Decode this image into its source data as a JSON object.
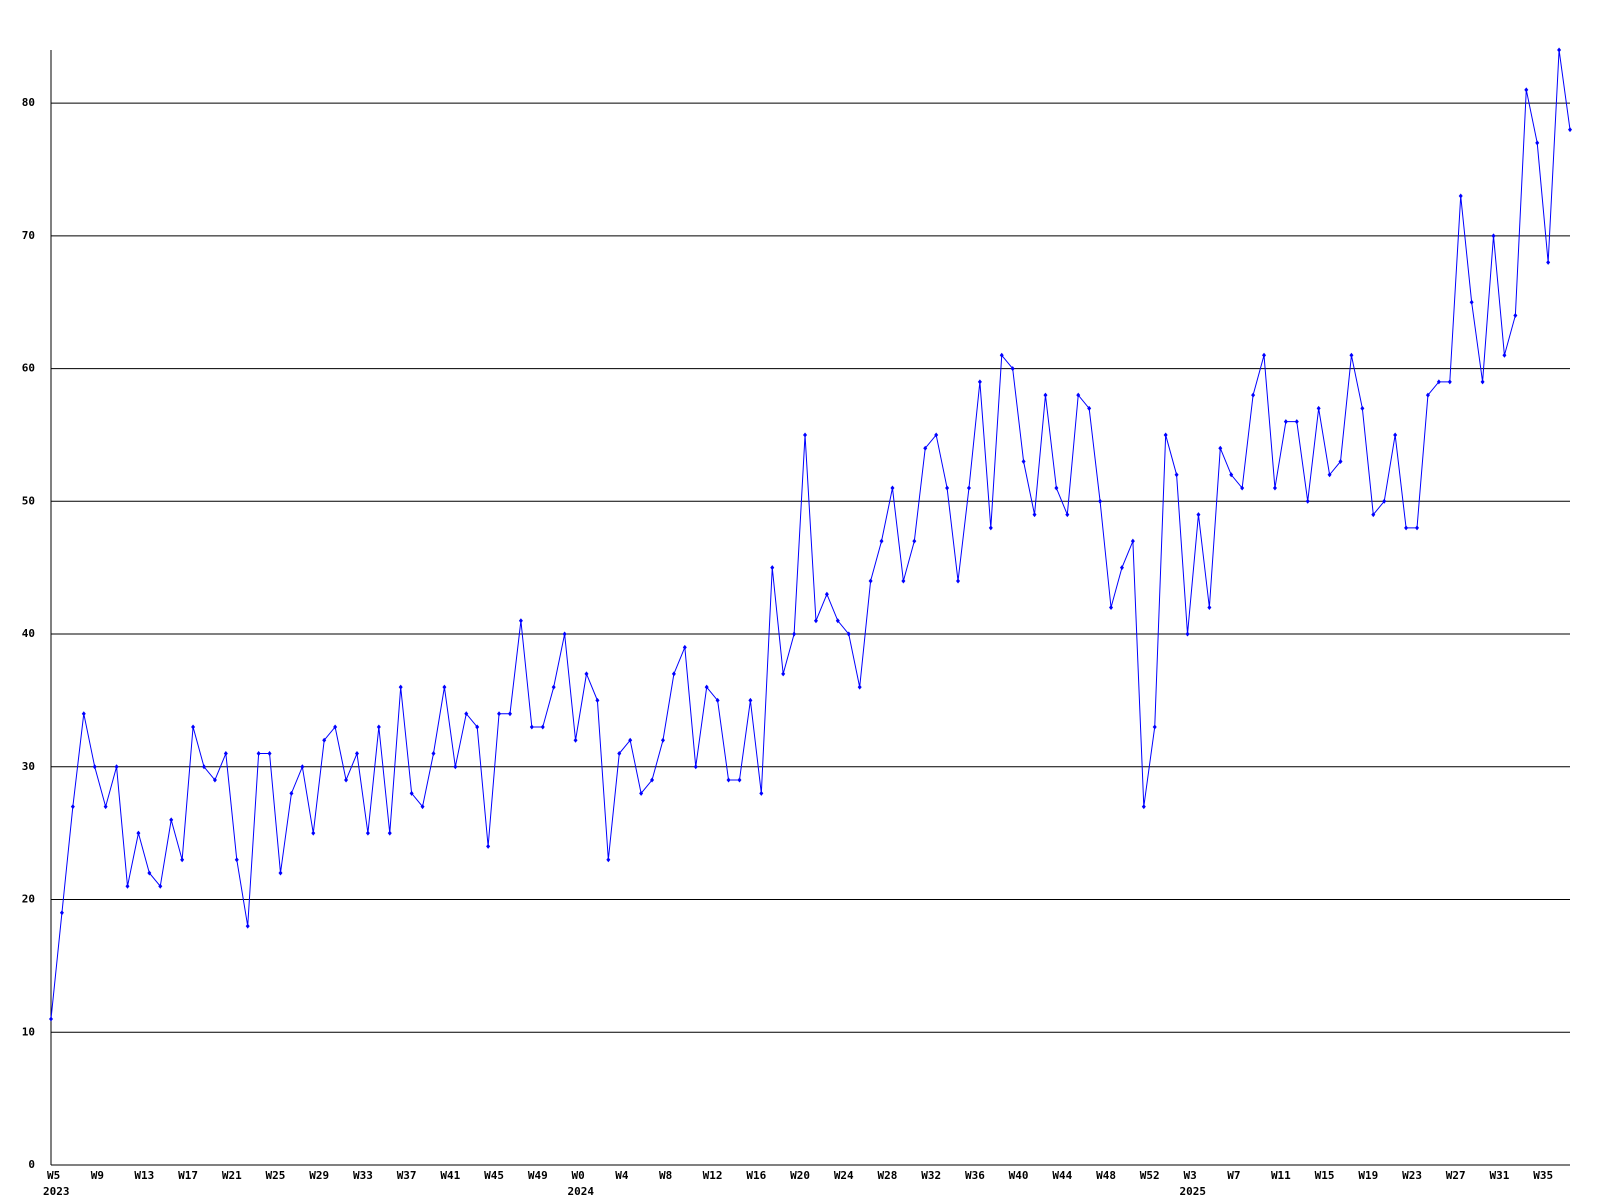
{
  "chart_data": {
    "type": "line",
    "categories": [
      "W5",
      null,
      null,
      null,
      "W9",
      null,
      null,
      null,
      "W13",
      null,
      null,
      null,
      "W17",
      null,
      null,
      null,
      "W21",
      null,
      null,
      null,
      "W25",
      null,
      null,
      null,
      "W29",
      null,
      null,
      null,
      "W33",
      null,
      null,
      null,
      "W37",
      null,
      null,
      null,
      "W41",
      null,
      null,
      null,
      "W45",
      null,
      null,
      null,
      "W49",
      null,
      null,
      null,
      "W0",
      null,
      null,
      null,
      "W4",
      null,
      null,
      null,
      "W8",
      null,
      null,
      null,
      "W12",
      null,
      null,
      null,
      "W16",
      null,
      null,
      null,
      "W20",
      null,
      null,
      null,
      "W24",
      null,
      null,
      null,
      "W28",
      null,
      null,
      null,
      "W32",
      null,
      null,
      null,
      "W36",
      null,
      null,
      null,
      "W40",
      null,
      null,
      null,
      "W44",
      null,
      null,
      null,
      "W48",
      null,
      null,
      null,
      "W52",
      null,
      null,
      null,
      "W3",
      null,
      null,
      null,
      "W7",
      null,
      null,
      null,
      "W11",
      null,
      null,
      null,
      "W15",
      null,
      null,
      null,
      "W19",
      null,
      null,
      null,
      "W23",
      null,
      null,
      null,
      "W27",
      null,
      null,
      null,
      "W31",
      null,
      null,
      null,
      "W35",
      null,
      null,
      null
    ],
    "years": [
      "2023",
      null,
      null,
      null,
      null,
      null,
      null,
      null,
      null,
      null,
      null,
      null,
      null,
      null,
      null,
      null,
      null,
      null,
      null,
      null,
      null,
      null,
      null,
      null,
      null,
      null,
      null,
      null,
      null,
      null,
      null,
      null,
      null,
      null,
      null,
      null,
      null,
      null,
      null,
      null,
      null,
      null,
      null,
      null,
      null,
      null,
      null,
      null,
      "2024",
      null,
      null,
      null,
      null,
      null,
      null,
      null,
      null,
      null,
      null,
      null,
      null,
      null,
      null,
      null,
      null,
      null,
      null,
      null,
      null,
      null,
      null,
      null,
      null,
      null,
      null,
      null,
      null,
      null,
      null,
      null,
      null,
      null,
      null,
      null,
      null,
      null,
      null,
      null,
      null,
      null,
      null,
      null,
      null,
      null,
      null,
      null,
      null,
      null,
      null,
      null,
      null,
      null,
      null,
      null,
      "2025",
      null,
      null,
      null,
      null,
      null,
      null,
      null,
      null,
      null,
      null,
      null,
      null,
      null,
      null,
      null,
      null,
      null,
      null,
      null,
      null,
      null,
      null,
      null,
      null,
      null,
      null,
      null,
      null,
      null,
      null,
      null,
      null,
      null,
      null,
      null
    ],
    "series": [
      {
        "color": "#0000ff",
        "values": [
          11,
          19,
          27,
          34,
          30,
          27,
          30,
          21,
          25,
          22,
          21,
          26,
          23,
          33,
          30,
          29,
          31,
          23,
          18,
          31,
          31,
          22,
          28,
          30,
          25,
          32,
          33,
          29,
          31,
          25,
          33,
          25,
          36,
          28,
          27,
          31,
          36,
          30,
          34,
          33,
          24,
          34,
          34,
          41,
          33,
          33,
          36,
          40,
          32,
          37,
          35,
          23,
          31,
          32,
          28,
          29,
          32,
          37,
          39,
          30,
          36,
          35,
          29,
          29,
          35,
          28,
          45,
          37,
          40,
          55,
          41,
          43,
          41,
          40,
          36,
          44,
          47,
          51,
          44,
          47,
          54,
          55,
          51,
          44,
          51,
          59,
          48,
          61,
          60,
          53,
          49,
          58,
          51,
          49,
          58,
          57,
          50,
          42,
          45,
          47,
          27,
          33,
          55,
          52,
          40,
          49,
          42,
          54,
          52,
          51,
          58,
          61,
          51,
          56,
          56,
          50,
          57,
          52,
          53,
          61,
          57,
          49,
          50,
          55,
          48,
          48,
          58,
          59,
          59,
          73,
          65,
          59,
          70,
          61,
          64,
          81,
          77,
          68,
          84,
          78
        ]
      }
    ],
    "ylim": [
      0,
      84
    ],
    "yticks": [
      0,
      10,
      20,
      30,
      40,
      50,
      60,
      70,
      80
    ],
    "grid": true
  }
}
